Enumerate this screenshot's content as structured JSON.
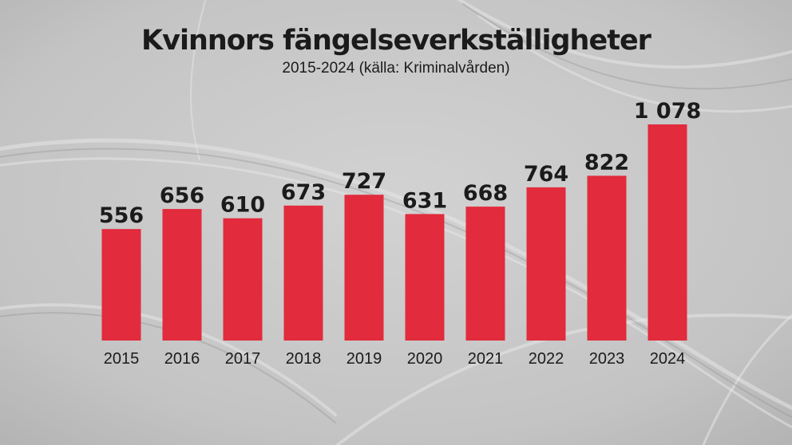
{
  "chart_data": {
    "type": "bar",
    "title": "Kvinnors fängelseverkställigheter",
    "subtitle": "2015-2024 (källa: Kriminalvården)",
    "categories": [
      "2015",
      "2016",
      "2017",
      "2018",
      "2019",
      "2020",
      "2021",
      "2022",
      "2023",
      "2024"
    ],
    "values": [
      556,
      656,
      610,
      673,
      727,
      631,
      668,
      764,
      822,
      1078
    ],
    "value_labels": [
      "556",
      "656",
      "610",
      "673",
      "727",
      "631",
      "668",
      "764",
      "822",
      "1 078"
    ],
    "bar_color": "#e22b3c",
    "xlabel": "",
    "ylabel": "",
    "ylim": [
      0,
      1078
    ],
    "grid": false,
    "legend": "none"
  }
}
